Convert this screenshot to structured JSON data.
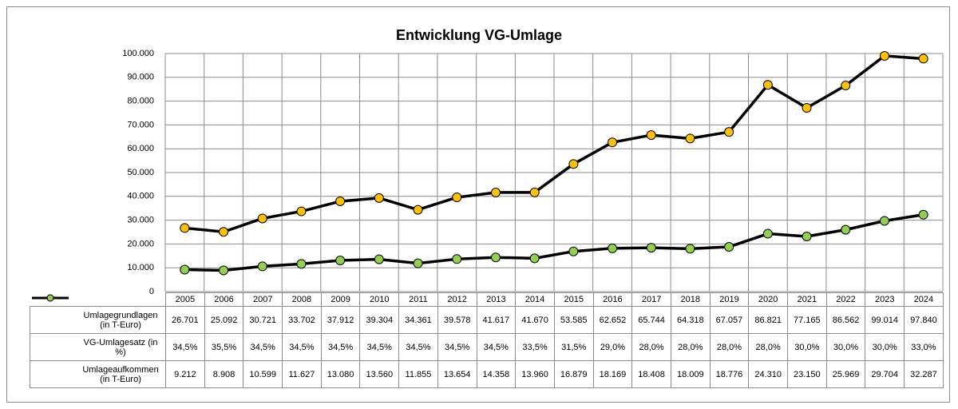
{
  "chart_data": {
    "type": "line",
    "title": "Entwicklung VG-Umlage",
    "categories": [
      "2005",
      "2006",
      "2007",
      "2008",
      "2009",
      "2010",
      "2011",
      "2012",
      "2013",
      "2014",
      "2015",
      "2016",
      "2017",
      "2018",
      "2019",
      "2020",
      "2021",
      "2022",
      "2023",
      "2024"
    ],
    "series": [
      {
        "name": "Umlagegrundlagen (in T-Euro)",
        "color": "#ffc000",
        "values": [
          26701,
          25092,
          30721,
          33702,
          37912,
          39304,
          34361,
          39578,
          41617,
          41670,
          53585,
          62652,
          65744,
          64318,
          67057,
          86821,
          77165,
          86562,
          99014,
          97840
        ],
        "value_labels": [
          "26.701",
          "25.092",
          "30.721",
          "33.702",
          "37.912",
          "39.304",
          "34.361",
          "39.578",
          "41.617",
          "41.670",
          "53.585",
          "62.652",
          "65.744",
          "64.318",
          "67.057",
          "86.821",
          "77.165",
          "86.562",
          "99.014",
          "97.840"
        ]
      },
      {
        "name": "VG-Umlagesatz (in %)",
        "values": [
          34.5,
          35.5,
          34.5,
          34.5,
          34.5,
          34.5,
          34.5,
          34.5,
          34.5,
          33.5,
          31.5,
          29.0,
          28.0,
          28.0,
          28.0,
          28.0,
          30.0,
          30.0,
          30.0,
          33.0
        ],
        "value_labels": [
          "34,5%",
          "35,5%",
          "34,5%",
          "34,5%",
          "34,5%",
          "34,5%",
          "34,5%",
          "34,5%",
          "34,5%",
          "33,5%",
          "31,5%",
          "29,0%",
          "28,0%",
          "28,0%",
          "28,0%",
          "28,0%",
          "30,0%",
          "30,0%",
          "30,0%",
          "33,0%"
        ]
      },
      {
        "name": "Umlageaufkommen (in T-Euro)",
        "color": "#92d050",
        "values": [
          9212,
          8908,
          10599,
          11627,
          13080,
          13560,
          11855,
          13654,
          14358,
          13960,
          16879,
          18169,
          18408,
          18009,
          18776,
          24310,
          23150,
          25969,
          29704,
          32287
        ],
        "value_labels": [
          "9.212",
          "8.908",
          "10.599",
          "11.627",
          "13.080",
          "13.560",
          "11.855",
          "13.654",
          "14.358",
          "13.960",
          "16.879",
          "18.169",
          "18.408",
          "18.009",
          "18.776",
          "24.310",
          "23.150",
          "25.969",
          "29.704",
          "32.287"
        ]
      }
    ],
    "ylim": [
      0,
      100000
    ],
    "yticks": [
      0,
      {
        "value": 10000,
        "label": "10.000"
      },
      {
        "value": 20000,
        "label": "20.000"
      },
      {
        "value": 30000,
        "label": "30.000"
      },
      {
        "value": 40000,
        "label": "40.000"
      },
      {
        "value": 50000,
        "label": "50.000"
      },
      {
        "value": 60000,
        "label": "60.000"
      },
      {
        "value": 70000,
        "label": "70.000"
      },
      {
        "value": 80000,
        "label": "80.000"
      },
      {
        "value": 90000,
        "label": "90.000"
      },
      {
        "value": 100000,
        "label": "100.000"
      }
    ],
    "grid": true
  }
}
